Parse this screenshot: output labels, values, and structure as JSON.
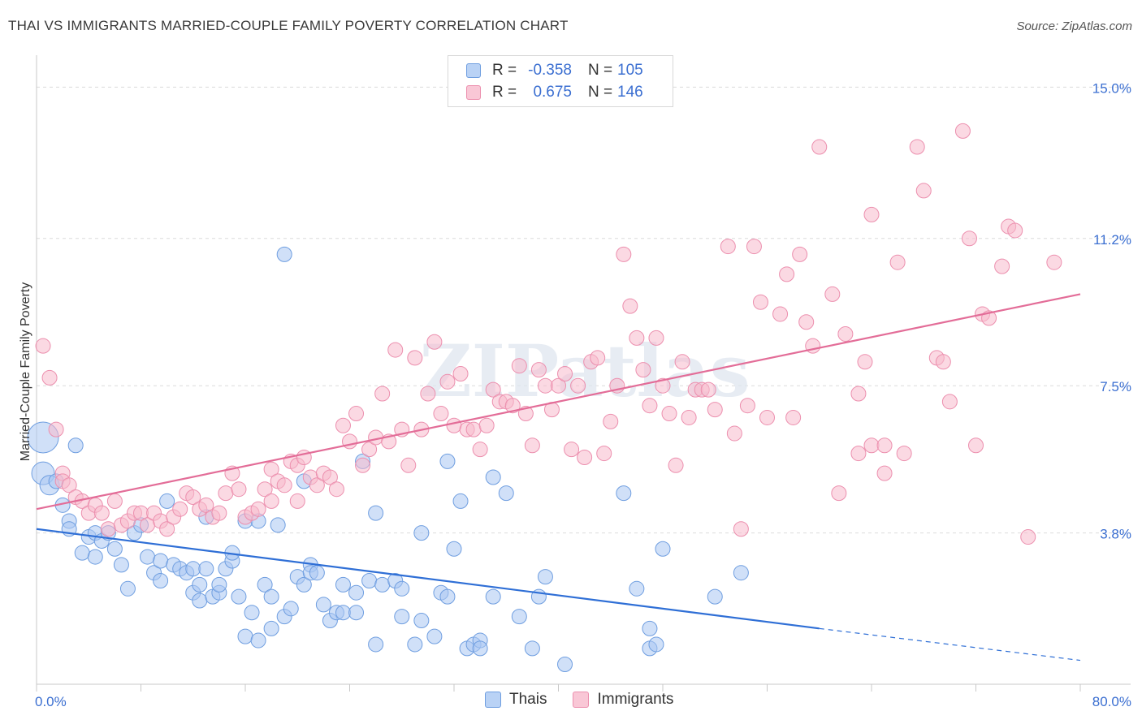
{
  "title": "THAI VS IMMIGRANTS MARRIED-COUPLE FAMILY POVERTY CORRELATION CHART",
  "source": "Source: ZipAtlas.com",
  "watermark": "ZIPatlas",
  "colors": {
    "thais_fill": "#a9c7f2",
    "thais_stroke": "#6f9ee0",
    "thais_line": "#2f6fd6",
    "immigrants_fill": "#f7b9cc",
    "immigrants_stroke": "#ec8fae",
    "immigrants_line": "#e36d98",
    "tick_label": "#3b6fd1"
  },
  "legend": {
    "r_label": "R =",
    "n_label": "N =",
    "thais": {
      "r": "-0.358",
      "n": "105"
    },
    "immigrants": {
      "r": "0.675",
      "n": "146"
    }
  },
  "bottom_legend": {
    "thais": "Thais",
    "immigrants": "Immigrants"
  },
  "chart_data": {
    "type": "scatter",
    "title": "THAI VS IMMIGRANTS MARRIED-COUPLE FAMILY POVERTY CORRELATION CHART",
    "xlabel": "",
    "ylabel": "Married-Couple Family Poverty",
    "xlim": [
      0,
      80
    ],
    "ylim": [
      0,
      15.6
    ],
    "x_tick_labels": [
      "0.0%",
      "80.0%"
    ],
    "y_ticks": [
      3.8,
      7.5,
      11.2,
      15.0
    ],
    "y_tick_labels": [
      "3.8%",
      "7.5%",
      "11.2%",
      "15.0%"
    ],
    "grid": true,
    "legend_position": "top-center",
    "series": [
      {
        "name": "Thais",
        "trend": {
          "x0": 0,
          "y0": 3.9,
          "x1": 60,
          "y1": 1.4,
          "dash_to_x": 80,
          "dash_to_y": 0.6
        },
        "points": [
          [
            0.5,
            6.2
          ],
          [
            0.5,
            5.3
          ],
          [
            1.0,
            5.0
          ],
          [
            1.5,
            5.1
          ],
          [
            2.0,
            4.5
          ],
          [
            2.5,
            4.1
          ],
          [
            3.0,
            6.0
          ],
          [
            2.5,
            3.9
          ],
          [
            3.5,
            3.3
          ],
          [
            4.0,
            3.7
          ],
          [
            4.5,
            3.2
          ],
          [
            4.5,
            3.8
          ],
          [
            5.0,
            3.6
          ],
          [
            5.5,
            3.8
          ],
          [
            6.0,
            3.4
          ],
          [
            6.5,
            3.0
          ],
          [
            7.0,
            2.4
          ],
          [
            7.5,
            3.8
          ],
          [
            8.0,
            4.0
          ],
          [
            8.5,
            3.2
          ],
          [
            9.0,
            2.8
          ],
          [
            9.5,
            2.6
          ],
          [
            9.5,
            3.1
          ],
          [
            10.0,
            4.6
          ],
          [
            10.5,
            3.0
          ],
          [
            11.0,
            2.9
          ],
          [
            11.5,
            2.8
          ],
          [
            12.0,
            2.3
          ],
          [
            12.0,
            2.9
          ],
          [
            12.5,
            2.1
          ],
          [
            12.5,
            2.5
          ],
          [
            13.0,
            2.9
          ],
          [
            13.5,
            2.2
          ],
          [
            14.0,
            2.3
          ],
          [
            14.0,
            2.5
          ],
          [
            13.0,
            4.2
          ],
          [
            14.5,
            2.9
          ],
          [
            15.0,
            3.1
          ],
          [
            15.0,
            3.3
          ],
          [
            15.5,
            2.2
          ],
          [
            16.0,
            1.2
          ],
          [
            16.0,
            4.1
          ],
          [
            16.5,
            1.8
          ],
          [
            17.0,
            1.1
          ],
          [
            17.0,
            4.1
          ],
          [
            17.5,
            2.5
          ],
          [
            18.0,
            1.4
          ],
          [
            18.0,
            2.2
          ],
          [
            18.5,
            4.0
          ],
          [
            19.0,
            1.7
          ],
          [
            19.5,
            1.9
          ],
          [
            19.0,
            10.8
          ],
          [
            20.0,
            2.7
          ],
          [
            20.5,
            2.5
          ],
          [
            20.5,
            5.1
          ],
          [
            21.0,
            3.0
          ],
          [
            21.0,
            2.8
          ],
          [
            21.5,
            2.8
          ],
          [
            22.0,
            2.0
          ],
          [
            22.5,
            1.6
          ],
          [
            23.0,
            1.8
          ],
          [
            23.5,
            2.5
          ],
          [
            23.5,
            1.8
          ],
          [
            24.5,
            1.8
          ],
          [
            24.5,
            2.3
          ],
          [
            25.5,
            2.6
          ],
          [
            25.0,
            5.6
          ],
          [
            26.0,
            4.3
          ],
          [
            26.0,
            1.0
          ],
          [
            26.5,
            2.5
          ],
          [
            27.5,
            2.6
          ],
          [
            28.0,
            1.7
          ],
          [
            28.0,
            2.4
          ],
          [
            29.0,
            1.0
          ],
          [
            29.5,
            1.6
          ],
          [
            29.5,
            3.8
          ],
          [
            30.5,
            1.2
          ],
          [
            31.0,
            2.3
          ],
          [
            31.5,
            2.2
          ],
          [
            31.5,
            5.6
          ],
          [
            32.0,
            3.4
          ],
          [
            32.5,
            4.6
          ],
          [
            33.0,
            0.9
          ],
          [
            33.5,
            1.0
          ],
          [
            34.0,
            1.1
          ],
          [
            34.0,
            0.9
          ],
          [
            35.0,
            5.2
          ],
          [
            35.0,
            2.2
          ],
          [
            36.0,
            4.8
          ],
          [
            37.0,
            1.7
          ],
          [
            38.0,
            0.9
          ],
          [
            38.5,
            2.2
          ],
          [
            39.0,
            2.7
          ],
          [
            40.5,
            0.5
          ],
          [
            45.0,
            4.8
          ],
          [
            46.0,
            2.4
          ],
          [
            48.0,
            3.4
          ],
          [
            47.0,
            1.4
          ],
          [
            47.0,
            0.9
          ],
          [
            47.5,
            1.0
          ],
          [
            52.0,
            2.2
          ],
          [
            54.0,
            2.8
          ]
        ]
      },
      {
        "name": "Immigrants",
        "trend": {
          "x0": 0,
          "y0": 4.4,
          "x1": 80,
          "y1": 9.8
        },
        "points": [
          [
            0.5,
            8.5
          ],
          [
            1.0,
            7.7
          ],
          [
            1.5,
            6.4
          ],
          [
            2.0,
            5.3
          ],
          [
            2.0,
            5.1
          ],
          [
            2.5,
            5.0
          ],
          [
            3.0,
            4.7
          ],
          [
            3.5,
            4.6
          ],
          [
            4.0,
            4.3
          ],
          [
            4.5,
            4.5
          ],
          [
            5.0,
            4.3
          ],
          [
            5.5,
            3.9
          ],
          [
            6.0,
            4.6
          ],
          [
            6.5,
            4.0
          ],
          [
            7.0,
            4.1
          ],
          [
            7.5,
            4.3
          ],
          [
            8.0,
            4.3
          ],
          [
            8.5,
            4.0
          ],
          [
            9.0,
            4.3
          ],
          [
            9.5,
            4.1
          ],
          [
            10.0,
            3.9
          ],
          [
            10.5,
            4.2
          ],
          [
            11.0,
            4.4
          ],
          [
            11.5,
            4.8
          ],
          [
            12.0,
            4.7
          ],
          [
            12.5,
            4.4
          ],
          [
            13.0,
            4.5
          ],
          [
            13.5,
            4.2
          ],
          [
            14.0,
            4.3
          ],
          [
            14.5,
            4.8
          ],
          [
            15.0,
            5.3
          ],
          [
            15.5,
            4.9
          ],
          [
            16.0,
            4.2
          ],
          [
            16.5,
            4.3
          ],
          [
            17.0,
            4.4
          ],
          [
            17.5,
            4.9
          ],
          [
            18.0,
            4.6
          ],
          [
            18.0,
            5.4
          ],
          [
            18.5,
            5.1
          ],
          [
            19.0,
            5.0
          ],
          [
            19.5,
            5.6
          ],
          [
            20.0,
            5.5
          ],
          [
            20.0,
            4.6
          ],
          [
            20.5,
            5.7
          ],
          [
            21.0,
            5.2
          ],
          [
            21.5,
            5.0
          ],
          [
            22.0,
            5.3
          ],
          [
            22.5,
            5.2
          ],
          [
            23.0,
            4.9
          ],
          [
            23.5,
            6.5
          ],
          [
            24.0,
            6.1
          ],
          [
            24.5,
            6.8
          ],
          [
            25.0,
            5.5
          ],
          [
            25.5,
            5.9
          ],
          [
            26.0,
            6.2
          ],
          [
            26.5,
            7.3
          ],
          [
            27.0,
            6.1
          ],
          [
            27.5,
            8.4
          ],
          [
            28.0,
            6.4
          ],
          [
            28.5,
            5.5
          ],
          [
            29.0,
            8.2
          ],
          [
            29.5,
            6.4
          ],
          [
            30.0,
            7.3
          ],
          [
            30.5,
            8.6
          ],
          [
            31.0,
            6.8
          ],
          [
            31.5,
            7.6
          ],
          [
            32.0,
            6.5
          ],
          [
            32.5,
            7.8
          ],
          [
            33.0,
            6.4
          ],
          [
            33.5,
            6.4
          ],
          [
            34.0,
            5.9
          ],
          [
            34.5,
            6.5
          ],
          [
            35.0,
            7.4
          ],
          [
            35.5,
            7.1
          ],
          [
            36.0,
            7.1
          ],
          [
            36.5,
            7.0
          ],
          [
            37.0,
            8.0
          ],
          [
            37.5,
            6.8
          ],
          [
            38.0,
            6.0
          ],
          [
            38.5,
            7.9
          ],
          [
            39.0,
            7.5
          ],
          [
            39.5,
            6.9
          ],
          [
            40.0,
            7.5
          ],
          [
            40.5,
            7.8
          ],
          [
            41.0,
            5.9
          ],
          [
            41.5,
            7.5
          ],
          [
            42.0,
            5.7
          ],
          [
            42.5,
            8.1
          ],
          [
            43.0,
            8.2
          ],
          [
            43.5,
            5.8
          ],
          [
            44.0,
            6.6
          ],
          [
            44.5,
            7.5
          ],
          [
            45.0,
            10.8
          ],
          [
            45.5,
            9.5
          ],
          [
            46.0,
            8.7
          ],
          [
            46.5,
            7.9
          ],
          [
            47.0,
            7.0
          ],
          [
            47.5,
            8.7
          ],
          [
            48.0,
            7.5
          ],
          [
            48.5,
            6.8
          ],
          [
            49.0,
            5.5
          ],
          [
            49.5,
            8.1
          ],
          [
            50.0,
            6.7
          ],
          [
            50.5,
            7.4
          ],
          [
            51.0,
            7.4
          ],
          [
            51.5,
            7.4
          ],
          [
            52.0,
            6.9
          ],
          [
            53.0,
            11.0
          ],
          [
            53.5,
            6.3
          ],
          [
            54.0,
            3.9
          ],
          [
            54.5,
            7.0
          ],
          [
            55.0,
            11.0
          ],
          [
            55.5,
            9.6
          ],
          [
            56.0,
            6.7
          ],
          [
            57.0,
            9.3
          ],
          [
            57.5,
            10.3
          ],
          [
            58.0,
            6.7
          ],
          [
            58.5,
            10.8
          ],
          [
            59.0,
            9.1
          ],
          [
            59.5,
            8.5
          ],
          [
            60.0,
            13.5
          ],
          [
            61.0,
            9.8
          ],
          [
            61.5,
            4.8
          ],
          [
            62.0,
            8.8
          ],
          [
            63.0,
            5.8
          ],
          [
            63.0,
            7.3
          ],
          [
            63.5,
            8.1
          ],
          [
            64.0,
            11.8
          ],
          [
            64.0,
            6.0
          ],
          [
            65.0,
            6.0
          ],
          [
            65.0,
            5.3
          ],
          [
            66.0,
            10.6
          ],
          [
            66.5,
            5.8
          ],
          [
            67.5,
            13.5
          ],
          [
            68.0,
            12.4
          ],
          [
            69.0,
            8.2
          ],
          [
            69.5,
            8.1
          ],
          [
            70.0,
            7.1
          ],
          [
            71.0,
            13.9
          ],
          [
            71.5,
            11.2
          ],
          [
            72.0,
            6.0
          ],
          [
            72.5,
            9.3
          ],
          [
            73.0,
            9.2
          ],
          [
            74.0,
            10.5
          ],
          [
            74.5,
            11.5
          ],
          [
            75.0,
            11.4
          ],
          [
            76.0,
            3.7
          ],
          [
            78.0,
            10.6
          ]
        ]
      }
    ]
  }
}
